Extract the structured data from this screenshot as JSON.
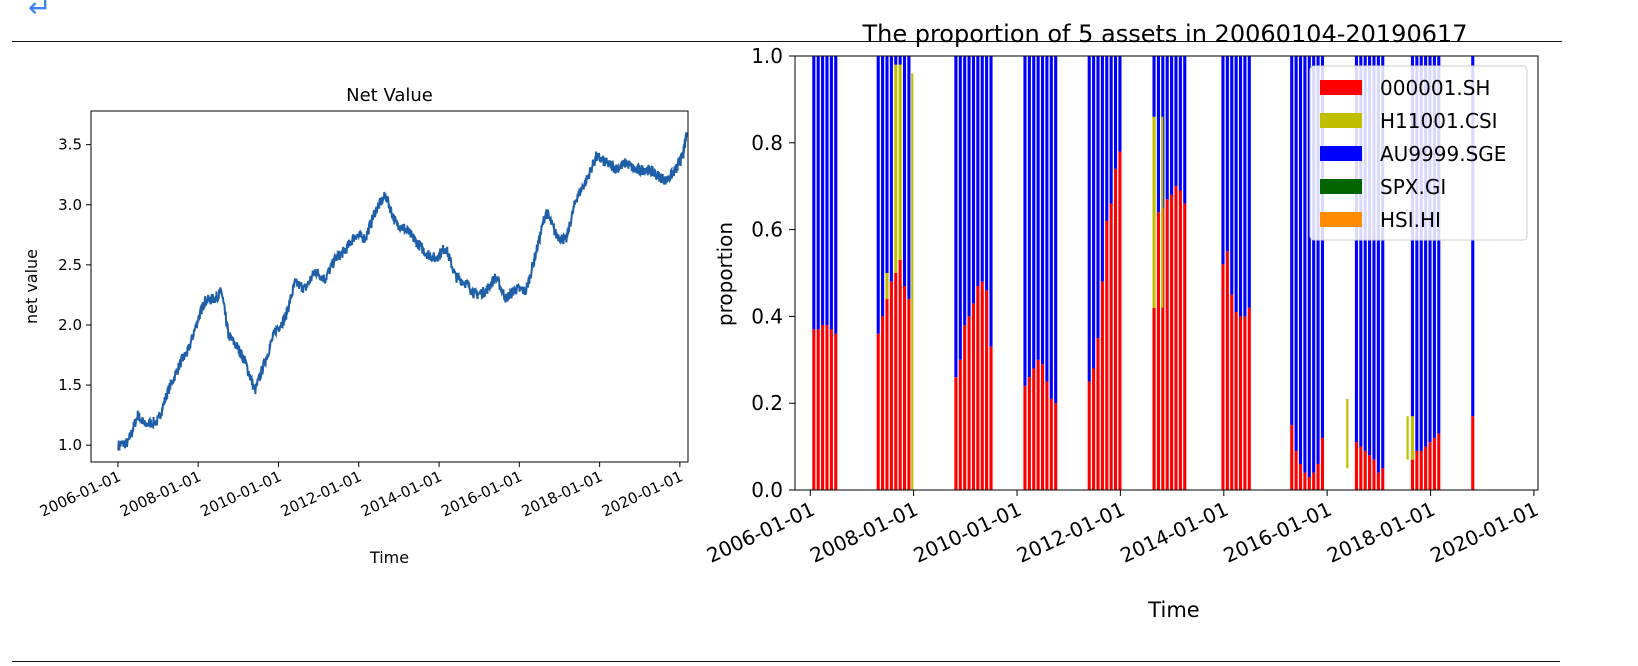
{
  "page": {
    "return_glyph": "↵"
  },
  "chart_data": [
    {
      "type": "line",
      "title": "Net Value",
      "xlabel": "Time",
      "ylabel": "net value",
      "x_ticks": [
        "2006-01-01",
        "2008-01-01",
        "2010-01-01",
        "2012-01-01",
        "2014-01-01",
        "2016-01-01",
        "2018-01-01",
        "2020-01-01"
      ],
      "y_ticks": [
        "1.0",
        "1.5",
        "2.0",
        "2.5",
        "3.0",
        "3.5"
      ],
      "xlim": [
        "2005-05-01",
        "2020-03-15"
      ],
      "ylim": [
        0.86,
        3.78
      ],
      "grid": false,
      "series": [
        {
          "color": "#1f5fa8",
          "points": [
            [
              "2006-01-04",
              1.0
            ],
            [
              "2006-04-01",
              1.02
            ],
            [
              "2006-07-01",
              1.25
            ],
            [
              "2006-09-01",
              1.17
            ],
            [
              "2007-01-01",
              1.2
            ],
            [
              "2007-04-01",
              1.45
            ],
            [
              "2007-08-01",
              1.7
            ],
            [
              "2007-10-01",
              1.78
            ],
            [
              "2008-01-01",
              2.05
            ],
            [
              "2008-03-01",
              2.2
            ],
            [
              "2008-06-01",
              2.22
            ],
            [
              "2008-08-01",
              2.28
            ],
            [
              "2008-10-01",
              1.92
            ],
            [
              "2009-01-01",
              1.8
            ],
            [
              "2009-03-01",
              1.7
            ],
            [
              "2009-06-01",
              1.45
            ],
            [
              "2009-09-01",
              1.7
            ],
            [
              "2009-12-01",
              1.95
            ],
            [
              "2010-03-01",
              2.05
            ],
            [
              "2010-06-01",
              2.35
            ],
            [
              "2010-09-01",
              2.3
            ],
            [
              "2010-12-01",
              2.45
            ],
            [
              "2011-03-01",
              2.38
            ],
            [
              "2011-06-01",
              2.55
            ],
            [
              "2011-09-01",
              2.62
            ],
            [
              "2011-12-01",
              2.75
            ],
            [
              "2012-03-01",
              2.72
            ],
            [
              "2012-06-01",
              2.95
            ],
            [
              "2012-09-01",
              3.08
            ],
            [
              "2012-12-01",
              2.85
            ],
            [
              "2013-03-01",
              2.8
            ],
            [
              "2013-06-01",
              2.7
            ],
            [
              "2013-09-01",
              2.6
            ],
            [
              "2013-12-01",
              2.55
            ],
            [
              "2014-03-01",
              2.65
            ],
            [
              "2014-06-01",
              2.4
            ],
            [
              "2014-09-01",
              2.35
            ],
            [
              "2014-12-01",
              2.25
            ],
            [
              "2015-03-01",
              2.28
            ],
            [
              "2015-06-01",
              2.4
            ],
            [
              "2015-09-01",
              2.22
            ],
            [
              "2015-12-01",
              2.3
            ],
            [
              "2016-03-01",
              2.28
            ],
            [
              "2016-06-01",
              2.6
            ],
            [
              "2016-09-01",
              2.95
            ],
            [
              "2016-12-01",
              2.75
            ],
            [
              "2017-03-01",
              2.7
            ],
            [
              "2017-06-01",
              3.05
            ],
            [
              "2017-09-01",
              3.2
            ],
            [
              "2017-12-01",
              3.4
            ],
            [
              "2018-03-01",
              3.35
            ],
            [
              "2018-06-01",
              3.3
            ],
            [
              "2018-09-01",
              3.35
            ],
            [
              "2018-12-01",
              3.28
            ],
            [
              "2019-03-01",
              3.3
            ],
            [
              "2019-06-01",
              3.25
            ],
            [
              "2019-09-01",
              3.2
            ],
            [
              "2019-12-01",
              3.3
            ],
            [
              "2020-02-01",
              3.42
            ],
            [
              "2020-03-01",
              3.6
            ]
          ]
        }
      ]
    },
    {
      "type": "bar",
      "stacked": true,
      "title": "The proportion of 5 assets in 20060104-20190617",
      "xlabel": "Time",
      "ylabel": "proportion",
      "x_ticks": [
        "2006-01-01",
        "2008-01-01",
        "2010-01-01",
        "2012-01-01",
        "2014-01-01",
        "2016-01-01",
        "2018-01-01",
        "2020-01-01"
      ],
      "y_ticks": [
        "0.0",
        "0.2",
        "0.4",
        "0.6",
        "0.8",
        "1.0"
      ],
      "xlim": [
        "2005-09-15",
        "2020-01-30"
      ],
      "ylim": [
        0,
        1.0
      ],
      "legend_position": "top-right",
      "legend": [
        {
          "name": "000001.SH",
          "color": "#ff0000"
        },
        {
          "name": "H11001.CSI",
          "color": "#bfbf00"
        },
        {
          "name": "AU9999.SGE",
          "color": "#0000ff"
        },
        {
          "name": "SPX.GI",
          "color": "#006400"
        },
        {
          "name": "HSI.HI",
          "color": "#ff8c00"
        }
      ],
      "bar_width_days": 22,
      "periods": [
        {
          "start": "2006-01",
          "red": [
            0.37,
            0.37,
            0.38,
            0.38,
            0.37,
            0.36
          ]
        },
        {
          "start": "2007-04",
          "red": [
            0.36,
            0.4,
            0.44,
            0.48,
            0.5,
            0.53,
            0.47,
            0.44
          ],
          "yellow": {
            "2": 0.06,
            "4": 0.48,
            "5": 0.45
          }
        },
        {
          "start": "2008-10",
          "red": [
            0.26,
            0.3,
            0.38,
            0.4,
            0.43,
            0.47,
            0.48,
            0.46,
            0.33
          ]
        },
        {
          "start": "2010-02",
          "red": [
            0.24,
            0.26,
            0.28,
            0.3,
            0.29,
            0.25,
            0.21,
            0.2
          ]
        },
        {
          "start": "2011-05",
          "red": [
            0.25,
            0.28,
            0.35,
            0.48,
            0.62,
            0.66,
            0.74,
            0.78
          ]
        },
        {
          "start": "2012-08",
          "red": [
            0.42,
            0.64,
            0.65,
            0.67,
            0.68,
            0.7,
            0.69,
            0.66
          ],
          "yellow": {
            "0": 0.44
          }
        },
        {
          "start": "2013-12",
          "red": [
            0.52,
            0.55,
            0.45,
            0.41,
            0.4,
            0.4,
            0.42
          ]
        },
        {
          "start": "2015-04",
          "red": [
            0.15,
            0.09,
            0.06,
            0.04,
            0.03,
            0.04,
            0.06,
            0.12
          ]
        },
        {
          "start": "2016-07",
          "red": [
            0.11,
            0.1,
            0.09,
            0.08,
            0.07,
            0.04,
            0.05
          ]
        },
        {
          "start": "2017-08",
          "red": [
            0.07,
            0.09,
            0.09,
            0.1,
            0.11,
            0.12,
            0.13
          ],
          "yellow": {
            "0": 0.1
          }
        },
        {
          "start": "2018-10",
          "red": [
            0.17
          ]
        }
      ],
      "yellow_marks": [
        {
          "date": "2007-12",
          "bottom": 0.0,
          "top": 0.96
        },
        {
          "date": "2012-10",
          "bottom": 0.42,
          "top": 0.86
        },
        {
          "date": "2016-05",
          "bottom": 0.05,
          "top": 0.21
        },
        {
          "date": "2017-07",
          "bottom": 0.07,
          "top": 0.17
        }
      ]
    }
  ]
}
